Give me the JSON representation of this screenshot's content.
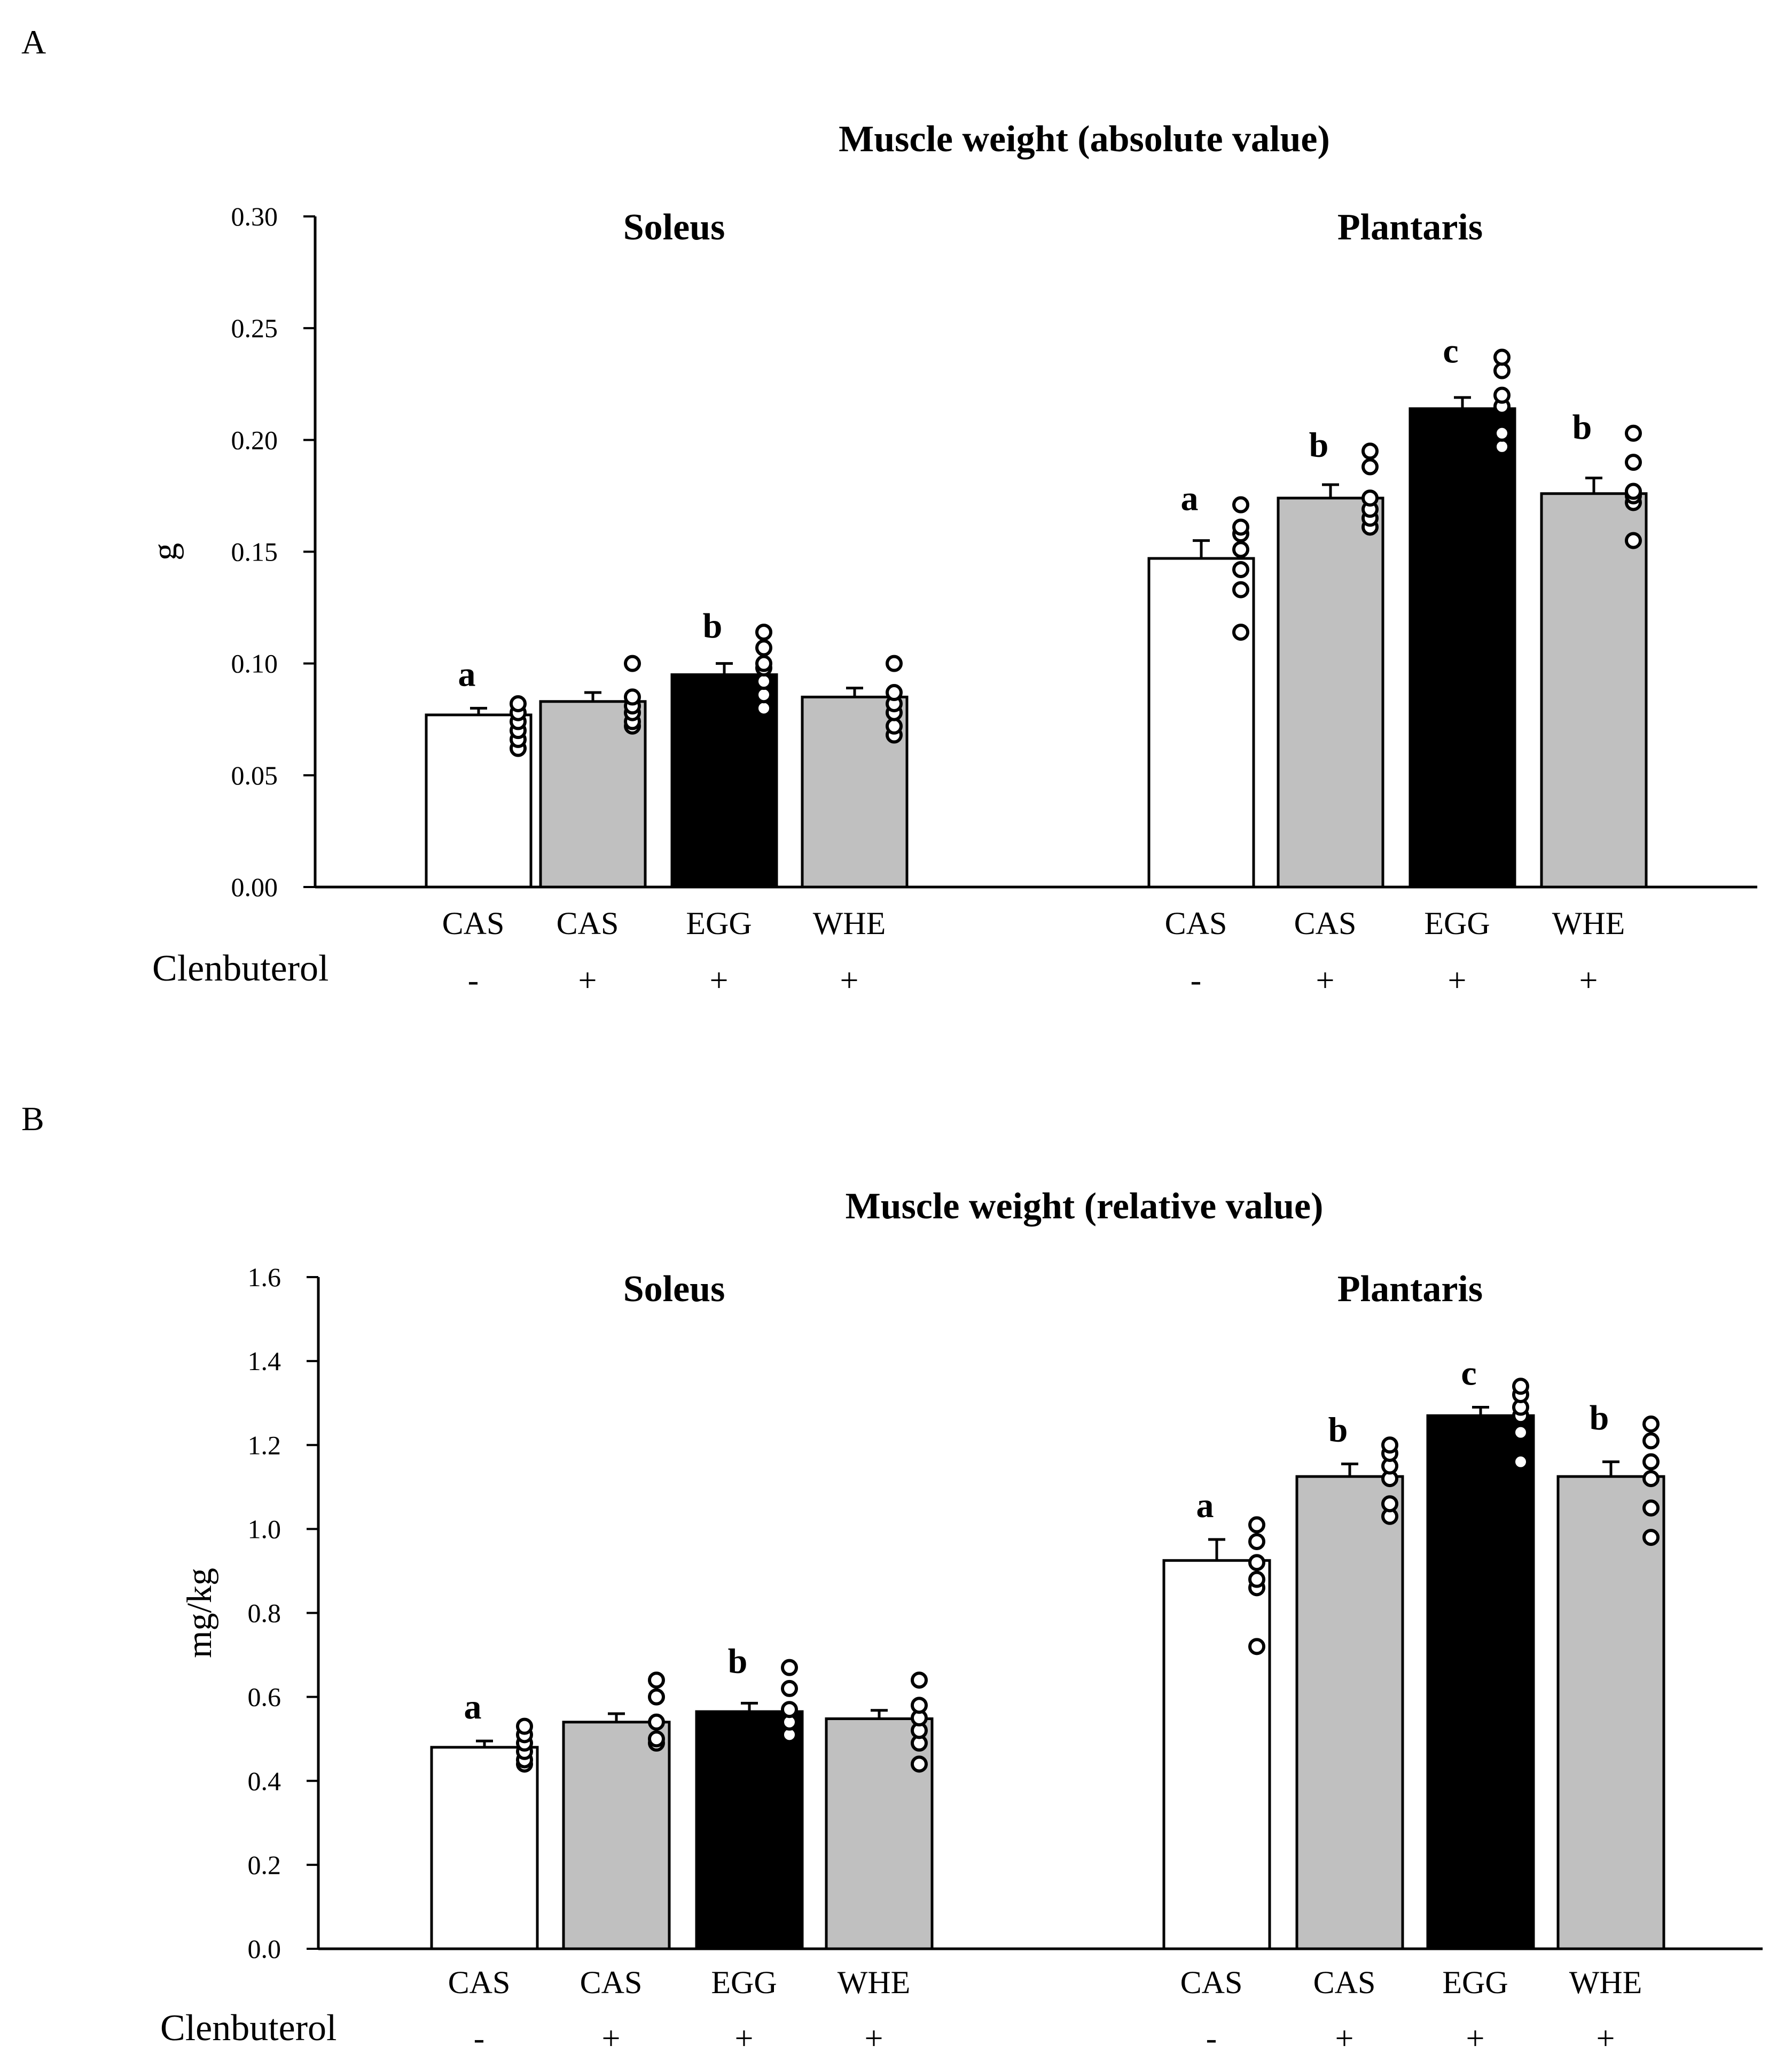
{
  "colors": {
    "untreated": "#ffffff",
    "casein_whey": "#c0c0c0",
    "egg": "#000000",
    "outline": "#000000"
  },
  "chart_data": [
    {
      "panel": "A",
      "type": "bar",
      "title": "Muscle weight (absolute value)",
      "ylabel": "g",
      "ylim": [
        0,
        0.3
      ],
      "yticks": [
        "0.00",
        "0.05",
        "0.10",
        "0.15",
        "0.20",
        "0.25",
        "0.30"
      ],
      "treatment_label": "Clenbuterol",
      "categories": [
        "CAS",
        "CAS",
        "EGG",
        "WHE"
      ],
      "treatment": [
        "-",
        "+",
        "+",
        "+"
      ],
      "fill": [
        "untreated",
        "casein_whey",
        "egg",
        "casein_whey"
      ],
      "groups": [
        {
          "name": "Soleus",
          "values": [
            0.077,
            0.083,
            0.095,
            0.085
          ],
          "errors": [
            0.003,
            0.004,
            0.005,
            0.004
          ],
          "significance": [
            "a",
            "",
            "b",
            ""
          ],
          "points": [
            [
              0.062,
              0.066,
              0.07,
              0.074,
              0.078,
              0.082
            ],
            [
              0.072,
              0.074,
              0.078,
              0.081,
              0.085,
              0.1
            ],
            [
              0.08,
              0.086,
              0.092,
              0.098,
              0.1,
              0.107,
              0.114
            ],
            [
              0.068,
              0.072,
              0.078,
              0.082,
              0.087,
              0.1
            ]
          ]
        },
        {
          "name": "Plantaris",
          "values": [
            0.147,
            0.174,
            0.214,
            0.176
          ],
          "errors": [
            0.008,
            0.006,
            0.005,
            0.007
          ],
          "significance": [
            "a",
            "b",
            "c",
            "b"
          ],
          "points": [
            [
              0.114,
              0.133,
              0.142,
              0.151,
              0.158,
              0.161,
              0.171
            ],
            [
              0.161,
              0.165,
              0.169,
              0.174,
              0.188,
              0.195
            ],
            [
              0.197,
              0.203,
              0.215,
              0.22,
              0.231,
              0.237
            ],
            [
              0.155,
              0.172,
              0.175,
              0.177,
              0.19,
              0.203
            ]
          ]
        }
      ]
    },
    {
      "panel": "B",
      "type": "bar",
      "title": "Muscle weight (relative value)",
      "ylabel": "mg/kg",
      "ylim": [
        0,
        1.6
      ],
      "yticks": [
        "0.0",
        "0.2",
        "0.4",
        "0.6",
        "0.8",
        "1.0",
        "1.2",
        "1.4",
        "1.6"
      ],
      "treatment_label": "Clenbuterol",
      "categories": [
        "CAS",
        "CAS",
        "EGG",
        "WHE"
      ],
      "treatment": [
        "-",
        "+",
        "+",
        "+"
      ],
      "fill": [
        "untreated",
        "casein_whey",
        "egg",
        "casein_whey"
      ],
      "groups": [
        {
          "name": "Soleus",
          "values": [
            0.48,
            0.54,
            0.565,
            0.548
          ],
          "errors": [
            0.015,
            0.02,
            0.02,
            0.02
          ],
          "significance": [
            "a",
            "",
            "b",
            ""
          ],
          "points": [
            [
              0.44,
              0.45,
              0.47,
              0.49,
              0.51,
              0.53
            ],
            [
              0.49,
              0.5,
              0.54,
              0.6,
              0.64
            ],
            [
              0.51,
              0.54,
              0.57,
              0.62,
              0.67
            ],
            [
              0.44,
              0.49,
              0.52,
              0.55,
              0.58,
              0.64
            ]
          ]
        },
        {
          "name": "Plantaris",
          "values": [
            0.925,
            1.125,
            1.27,
            1.125
          ],
          "errors": [
            0.05,
            0.03,
            0.02,
            0.035
          ],
          "significance": [
            "a",
            "b",
            "c",
            "b"
          ],
          "points": [
            [
              0.72,
              0.86,
              0.88,
              0.92,
              0.97,
              1.01
            ],
            [
              1.03,
              1.06,
              1.12,
              1.15,
              1.18,
              1.2
            ],
            [
              1.16,
              1.23,
              1.27,
              1.29,
              1.32,
              1.34
            ],
            [
              0.98,
              1.05,
              1.12,
              1.16,
              1.21,
              1.25
            ]
          ]
        }
      ]
    }
  ]
}
